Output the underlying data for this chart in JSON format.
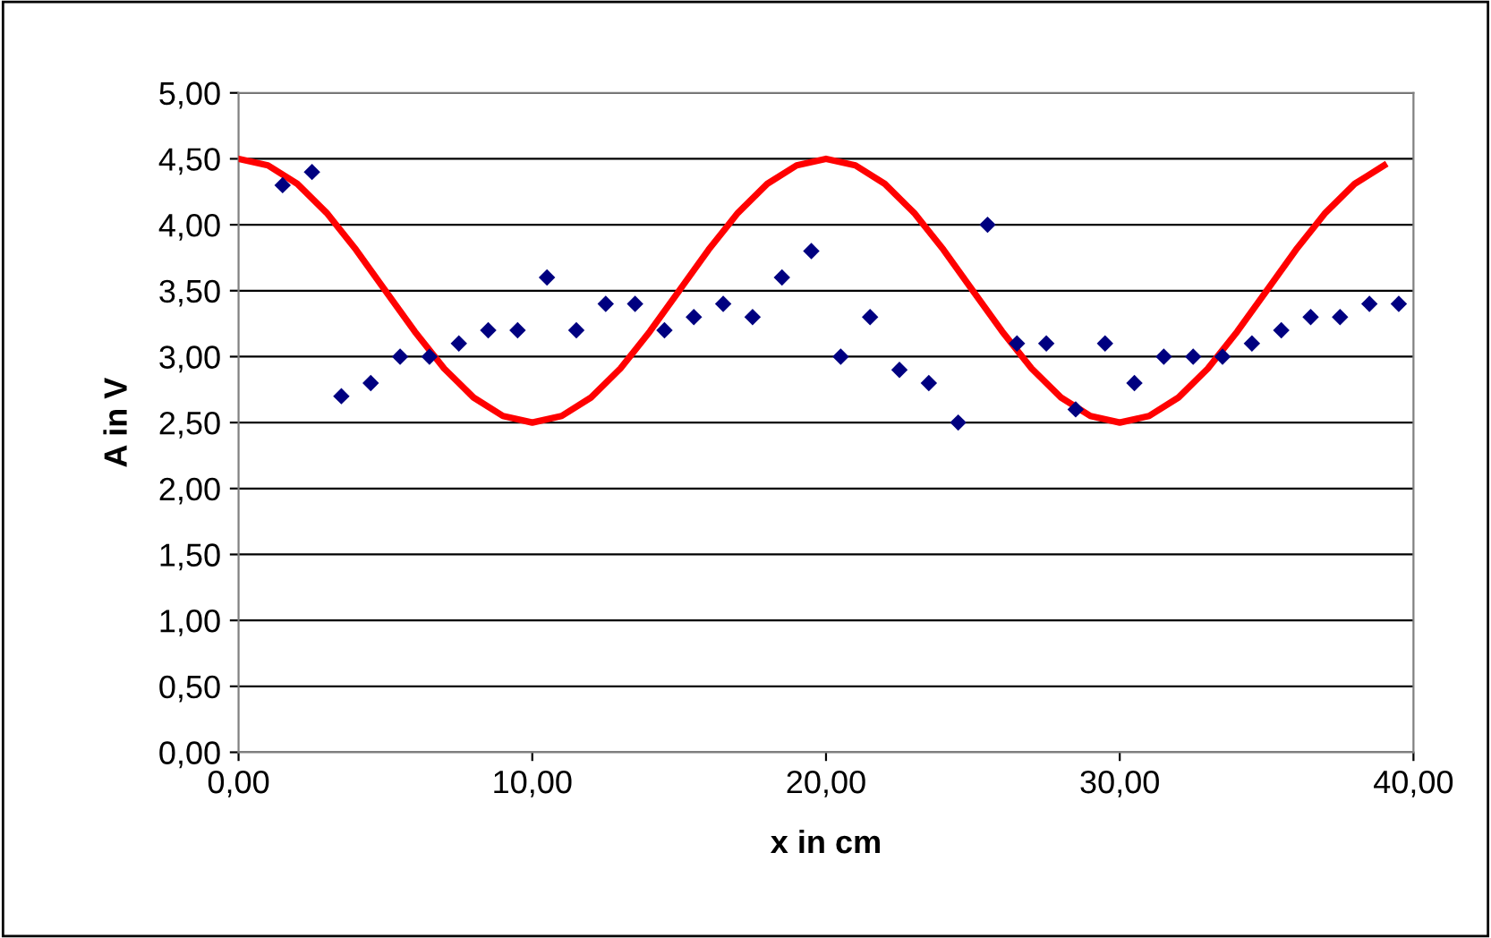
{
  "chart_data": {
    "type": "scatter",
    "xlabel": "x in cm",
    "ylabel": "A in V",
    "xlim": [
      0,
      40
    ],
    "ylim": [
      0,
      5
    ],
    "xticks": [
      {
        "value": 0,
        "label": "0,00"
      },
      {
        "value": 10,
        "label": "10,00"
      },
      {
        "value": 20,
        "label": "20,00"
      },
      {
        "value": 30,
        "label": "30,00"
      },
      {
        "value": 40,
        "label": "40,00"
      }
    ],
    "yticks": [
      {
        "value": 0,
        "label": "0,00"
      },
      {
        "value": 0.5,
        "label": "0,50"
      },
      {
        "value": 1,
        "label": "1,00"
      },
      {
        "value": 1.5,
        "label": "1,50"
      },
      {
        "value": 2,
        "label": "2,00"
      },
      {
        "value": 2.5,
        "label": "2,50"
      },
      {
        "value": 3,
        "label": "3,00"
      },
      {
        "value": 3.5,
        "label": "3,50"
      },
      {
        "value": 4,
        "label": "4,00"
      },
      {
        "value": 4.5,
        "label": "4,50"
      },
      {
        "value": 5,
        "label": "5,00"
      }
    ],
    "grid": "y",
    "legend": false,
    "series": [
      {
        "marker": "diamond",
        "color": "#000080",
        "x": [
          1.5,
          2.5,
          3.5,
          4.5,
          5.5,
          6.5,
          7.5,
          8.5,
          9.5,
          10.5,
          11.5,
          12.5,
          13.5,
          14.5,
          15.5,
          16.5,
          17.5,
          18.5,
          19.5,
          20.5,
          21.5,
          22.5,
          23.5,
          24.5,
          25.5,
          26.5,
          27.5,
          28.5,
          29.5,
          30.5,
          31.5,
          32.5,
          33.5,
          34.5,
          35.5,
          36.5,
          37.5,
          38.5,
          39.5
        ],
        "values": [
          4.3,
          4.4,
          2.7,
          2.8,
          3.0,
          3.0,
          3.1,
          3.2,
          3.2,
          3.6,
          3.2,
          3.4,
          3.4,
          3.2,
          3.3,
          3.4,
          3.3,
          3.6,
          3.8,
          3.0,
          3.3,
          2.9,
          2.8,
          2.5,
          4.0,
          3.1,
          3.1,
          2.6,
          3.1,
          2.8,
          3.0,
          3.0,
          3.0,
          3.1,
          3.2,
          3.3,
          3.3,
          3.4,
          3.4
        ]
      },
      {
        "type": "line",
        "marker": "none",
        "line_style": "solid",
        "color": "#ff0000",
        "x": [
          0,
          1,
          2,
          3,
          4,
          5,
          6,
          7,
          8,
          9,
          10,
          11,
          12,
          13,
          14,
          15,
          16,
          17,
          18,
          19,
          20,
          21,
          22,
          23,
          24,
          25,
          26,
          27,
          28,
          29,
          30,
          31,
          32,
          33,
          34,
          35,
          36,
          37,
          38,
          39
        ],
        "values": [
          4.5,
          4.45,
          4.31,
          4.09,
          3.81,
          3.5,
          3.19,
          2.91,
          2.69,
          2.55,
          2.5,
          2.55,
          2.69,
          2.91,
          3.19,
          3.5,
          3.81,
          4.09,
          4.31,
          4.45,
          4.5,
          4.45,
          4.31,
          4.09,
          3.81,
          3.5,
          3.19,
          2.91,
          2.69,
          2.55,
          2.5,
          2.55,
          2.69,
          2.91,
          3.19,
          3.5,
          3.81,
          4.09,
          4.31,
          4.45
        ]
      }
    ]
  }
}
